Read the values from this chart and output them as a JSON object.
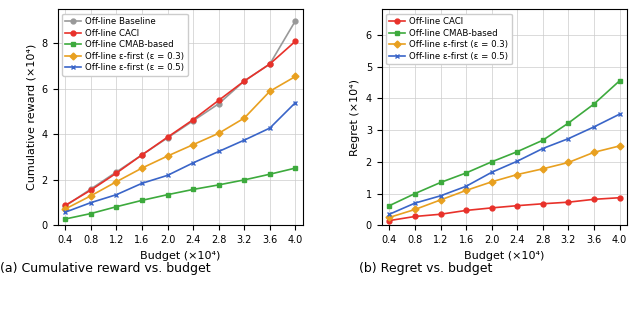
{
  "budget_x": [
    0.4,
    0.8,
    1.2,
    1.6,
    2.0,
    2.4,
    2.8,
    3.2,
    3.6,
    4.0
  ],
  "left_baseline": [
    0.85,
    1.6,
    2.35,
    3.1,
    3.85,
    4.6,
    5.35,
    6.35,
    7.1,
    9.0
  ],
  "left_caci": [
    0.88,
    1.55,
    2.3,
    3.1,
    3.88,
    4.65,
    5.5,
    6.35,
    7.1,
    8.1
  ],
  "left_cmab": [
    0.28,
    0.52,
    0.82,
    1.1,
    1.35,
    1.58,
    1.78,
    2.0,
    2.25,
    2.52
  ],
  "left_eps03": [
    0.72,
    1.3,
    1.92,
    2.52,
    3.05,
    3.55,
    4.05,
    4.72,
    5.9,
    6.55
  ],
  "left_eps05": [
    0.58,
    1.0,
    1.35,
    1.85,
    2.2,
    2.75,
    3.25,
    3.75,
    4.28,
    5.4
  ],
  "right_caci": [
    0.15,
    0.28,
    0.35,
    0.47,
    0.55,
    0.62,
    0.68,
    0.73,
    0.82,
    0.87
  ],
  "right_cmab": [
    0.62,
    1.0,
    1.35,
    1.65,
    2.0,
    2.32,
    2.68,
    3.22,
    3.82,
    4.55
  ],
  "right_eps03": [
    0.25,
    0.5,
    0.8,
    1.1,
    1.37,
    1.6,
    1.78,
    1.98,
    2.3,
    2.5
  ],
  "right_eps05": [
    0.35,
    0.7,
    0.93,
    1.23,
    1.67,
    2.02,
    2.42,
    2.73,
    3.1,
    3.5
  ],
  "left_ylabel": "Cumulative reward (×10⁴)",
  "right_ylabel": "Regret (×10⁴)",
  "xlabel": "Budget (×10⁴)",
  "left_caption": "(a) Cumulative reward vs. budget",
  "right_caption": "(b) Regret vs. budget",
  "left_ylim": [
    0,
    9.5
  ],
  "right_ylim": [
    0,
    6.8
  ],
  "left_yticks": [
    0,
    2,
    4,
    6,
    8
  ],
  "right_yticks": [
    0,
    1,
    2,
    3,
    4,
    5,
    6
  ],
  "xticks": [
    0.4,
    0.8,
    1.2,
    1.6,
    2.0,
    2.4,
    2.8,
    3.2,
    3.6,
    4.0
  ],
  "xtick_labels": [
    "0.4",
    "0.8",
    "1.2",
    "1.6",
    "2.0",
    "2.4",
    "2.8",
    "3.2",
    "3.6",
    "4.0"
  ],
  "color_baseline": "#999999",
  "color_caci": "#e8312a",
  "color_cmab": "#3daa3d",
  "color_eps03": "#e8a020",
  "color_eps05": "#3a65c8",
  "label_baseline": "Off-line Baseline",
  "label_caci": "Off-line CACl",
  "label_cmab": "Off-line CMAB-based",
  "label_eps03": "Off-line ε-first (ε = 0.3)",
  "label_eps05": "Off-line ε-first (ε = 0.5)",
  "marker_baseline": "o",
  "marker_caci": "o",
  "marker_cmab": "s",
  "marker_eps03": "D",
  "marker_eps05": "x",
  "figsize": [
    6.4,
    3.13
  ],
  "dpi": 100
}
